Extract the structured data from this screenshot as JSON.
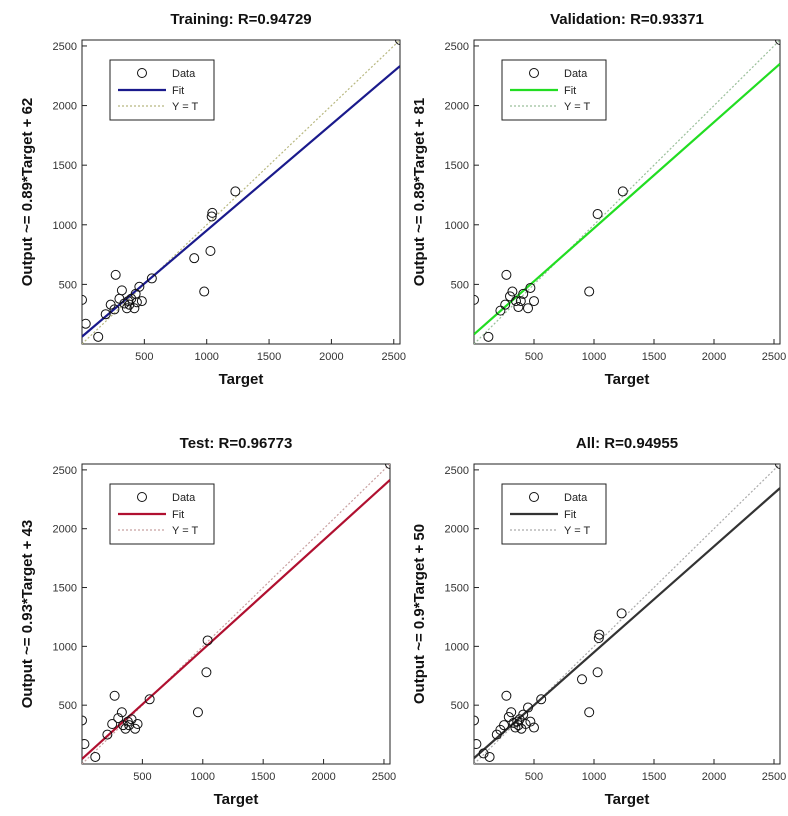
{
  "chart_data": [
    {
      "type": "scatter",
      "title": "Training: R=0.94729",
      "xlabel": "Target",
      "ylabel": "Output ~= 0.89*Target + 62",
      "xlim": [
        0,
        2550
      ],
      "ylim": [
        0,
        2550
      ],
      "xticks": [
        500,
        1000,
        1500,
        2000,
        2500
      ],
      "yticks": [
        500,
        1000,
        1500,
        2000,
        2500
      ],
      "legend": [
        "Data",
        "Fit",
        "Y = T"
      ],
      "legend_position": "top-left",
      "fit": {
        "slope": 0.89,
        "intercept": 62,
        "color": "#1a1a8c"
      },
      "identity_color": "#b8b880",
      "points": [
        [
          0,
          370
        ],
        [
          30,
          170
        ],
        [
          130,
          60
        ],
        [
          190,
          250
        ],
        [
          230,
          330
        ],
        [
          260,
          290
        ],
        [
          270,
          580
        ],
        [
          300,
          380
        ],
        [
          320,
          450
        ],
        [
          340,
          340
        ],
        [
          360,
          300
        ],
        [
          370,
          360
        ],
        [
          380,
          330
        ],
        [
          395,
          380
        ],
        [
          420,
          300
        ],
        [
          430,
          420
        ],
        [
          440,
          350
        ],
        [
          460,
          480
        ],
        [
          480,
          360
        ],
        [
          560,
          550
        ],
        [
          900,
          720
        ],
        [
          980,
          440
        ],
        [
          1030,
          780
        ],
        [
          1040,
          1070
        ],
        [
          1045,
          1100
        ],
        [
          1230,
          1280
        ],
        [
          2550,
          2550
        ]
      ]
    },
    {
      "type": "scatter",
      "title": "Validation: R=0.93371",
      "xlabel": "Target",
      "ylabel": "Output ~= 0.89*Target + 81",
      "xlim": [
        0,
        2550
      ],
      "ylim": [
        0,
        2550
      ],
      "xticks": [
        500,
        1000,
        1500,
        2000,
        2500
      ],
      "yticks": [
        500,
        1000,
        1500,
        2000,
        2500
      ],
      "legend": [
        "Data",
        "Fit",
        "Y = T"
      ],
      "legend_position": "top-left",
      "fit": {
        "slope": 0.89,
        "intercept": 81,
        "color": "#22dd22"
      },
      "identity_color": "#9abf9a",
      "points": [
        [
          0,
          370
        ],
        [
          120,
          60
        ],
        [
          220,
          280
        ],
        [
          260,
          330
        ],
        [
          270,
          580
        ],
        [
          300,
          400
        ],
        [
          320,
          440
        ],
        [
          350,
          360
        ],
        [
          370,
          310
        ],
        [
          390,
          360
        ],
        [
          410,
          420
        ],
        [
          450,
          300
        ],
        [
          470,
          470
        ],
        [
          500,
          360
        ],
        [
          960,
          440
        ],
        [
          1030,
          1090
        ],
        [
          1240,
          1280
        ],
        [
          2550,
          2550
        ]
      ]
    },
    {
      "type": "scatter",
      "title": "Test: R=0.96773",
      "xlabel": "Target",
      "ylabel": "Output ~= 0.93*Target + 43",
      "xlim": [
        0,
        2550
      ],
      "ylim": [
        0,
        2550
      ],
      "xticks": [
        500,
        1000,
        1500,
        2000,
        2500
      ],
      "yticks": [
        500,
        1000,
        1500,
        2000,
        2500
      ],
      "legend": [
        "Data",
        "Fit",
        "Y = T"
      ],
      "legend_position": "top-left",
      "fit": {
        "slope": 0.93,
        "intercept": 43,
        "color": "#b01030"
      },
      "identity_color": "#c8a0a0",
      "points": [
        [
          0,
          370
        ],
        [
          20,
          170
        ],
        [
          110,
          60
        ],
        [
          210,
          250
        ],
        [
          250,
          340
        ],
        [
          270,
          580
        ],
        [
          300,
          390
        ],
        [
          330,
          440
        ],
        [
          340,
          330
        ],
        [
          360,
          300
        ],
        [
          380,
          360
        ],
        [
          390,
          330
        ],
        [
          410,
          380
        ],
        [
          440,
          300
        ],
        [
          460,
          340
        ],
        [
          560,
          550
        ],
        [
          960,
          440
        ],
        [
          1030,
          780
        ],
        [
          1040,
          1050
        ],
        [
          2550,
          2550
        ]
      ]
    },
    {
      "type": "scatter",
      "title": "All: R=0.94955",
      "xlabel": "Target",
      "ylabel": "Output ~= 0.9*Target + 50",
      "xlim": [
        0,
        2550
      ],
      "ylim": [
        0,
        2550
      ],
      "xticks": [
        500,
        1000,
        1500,
        2000,
        2500
      ],
      "yticks": [
        500,
        1000,
        1500,
        2000,
        2500
      ],
      "legend": [
        "Data",
        "Fit",
        "Y = T"
      ],
      "legend_position": "top-left",
      "fit": {
        "slope": 0.9,
        "intercept": 50,
        "color": "#333333"
      },
      "identity_color": "#aaaaaa",
      "points": [
        [
          0,
          370
        ],
        [
          20,
          170
        ],
        [
          80,
          90
        ],
        [
          130,
          60
        ],
        [
          190,
          250
        ],
        [
          220,
          290
        ],
        [
          250,
          330
        ],
        [
          270,
          580
        ],
        [
          290,
          400
        ],
        [
          310,
          440
        ],
        [
          330,
          350
        ],
        [
          345,
          310
        ],
        [
          360,
          360
        ],
        [
          370,
          330
        ],
        [
          380,
          380
        ],
        [
          395,
          300
        ],
        [
          410,
          420
        ],
        [
          430,
          340
        ],
        [
          450,
          480
        ],
        [
          470,
          360
        ],
        [
          500,
          310
        ],
        [
          560,
          550
        ],
        [
          900,
          720
        ],
        [
          960,
          440
        ],
        [
          1030,
          780
        ],
        [
          1040,
          1070
        ],
        [
          1045,
          1100
        ],
        [
          1230,
          1280
        ],
        [
          2550,
          2550
        ]
      ]
    }
  ]
}
